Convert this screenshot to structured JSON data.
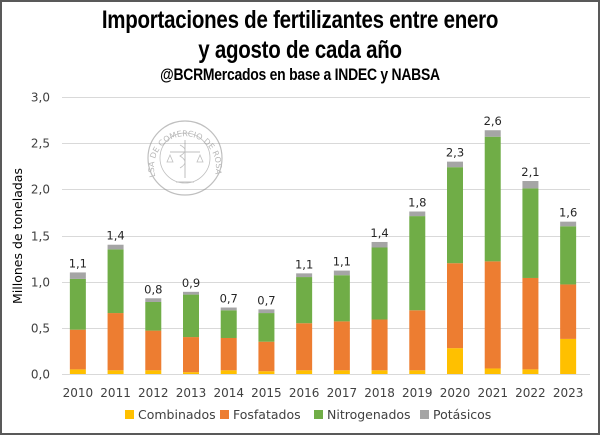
{
  "chart_data": {
    "type": "bar",
    "stacked": true,
    "title": "Importaciones de fertilizantes entre enero",
    "title_line2": "y agosto de cada año",
    "subtitle": "@BCRMercados en base a INDEC y NABSA",
    "xlabel": "",
    "ylabel": "Millones de toneladas",
    "ylim": [
      0,
      3.0
    ],
    "yticks": [
      0,
      0.5,
      1.0,
      1.5,
      2.0,
      2.5,
      3.0
    ],
    "ytick_labels": [
      "0,0",
      "0,5",
      "1,0",
      "1,5",
      "2,0",
      "2,5",
      "3,0"
    ],
    "grid": true,
    "legend_position": "bottom",
    "watermark": "BOLSA DE COMERCIO DE ROSARIO",
    "categories": [
      "2010",
      "2011",
      "2012",
      "2013",
      "2014",
      "2015",
      "2016",
      "2017",
      "2018",
      "2019",
      "2020",
      "2021",
      "2022",
      "2023"
    ],
    "series": [
      {
        "name": "Combinados",
        "color": "#FFC000",
        "values": [
          0.05,
          0.04,
          0.04,
          0.02,
          0.04,
          0.03,
          0.04,
          0.04,
          0.04,
          0.04,
          0.28,
          0.06,
          0.05,
          0.38
        ]
      },
      {
        "name": "Fosfatados",
        "color": "#ED7D31",
        "values": [
          0.43,
          0.62,
          0.43,
          0.38,
          0.35,
          0.32,
          0.51,
          0.53,
          0.55,
          0.65,
          0.92,
          1.16,
          0.99,
          0.59
        ]
      },
      {
        "name": "Nitrogenados",
        "color": "#70AD47",
        "values": [
          0.55,
          0.69,
          0.31,
          0.46,
          0.3,
          0.31,
          0.5,
          0.5,
          0.78,
          1.02,
          1.04,
          1.35,
          0.97,
          0.63
        ]
      },
      {
        "name": "Potásicos",
        "color": "#A5A5A5",
        "values": [
          0.07,
          0.05,
          0.04,
          0.03,
          0.03,
          0.04,
          0.04,
          0.05,
          0.06,
          0.05,
          0.06,
          0.07,
          0.08,
          0.05
        ]
      }
    ],
    "total_labels": [
      "1,1",
      "1,4",
      "0,8",
      "0,9",
      "0,7",
      "0,7",
      "1,1",
      "1,1",
      "1,4",
      "1,8",
      "2,3",
      "2,6",
      "2,1",
      "1,6"
    ]
  }
}
